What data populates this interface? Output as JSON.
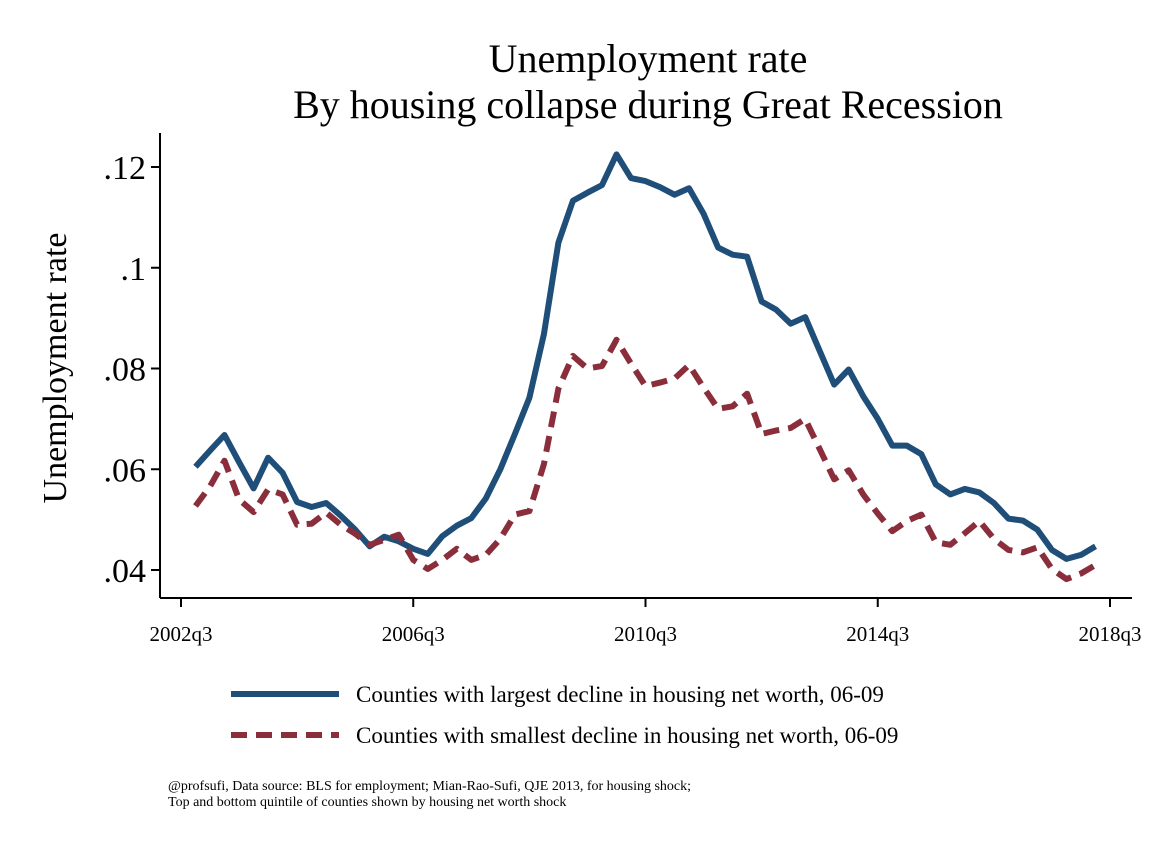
{
  "chart_data": {
    "type": "line",
    "title": "Unemployment rate",
    "subtitle": "By housing collapse during Great Recession",
    "xlabel": "",
    "ylabel": "Unemployment rate",
    "x_start": "2002q4",
    "x_end": "2018q1",
    "xlim": [
      "2002q3",
      "2018q3"
    ],
    "ylim": [
      0.035,
      0.126
    ],
    "x_ticks": [
      "2002q3",
      "2006q3",
      "2010q3",
      "2014q3",
      "2018q3"
    ],
    "y_ticks": [
      0.04,
      0.06,
      0.08,
      0.1,
      0.12
    ],
    "y_tick_labels": [
      ".04",
      ".06",
      ".08",
      ".1",
      ".12"
    ],
    "grid": false,
    "legend_position": "bottom",
    "series": [
      {
        "name": "Counties with largest decline in housing net worth, 06-09",
        "color": "#1f4e79",
        "style": "solid",
        "values": [
          0.0605,
          0.0637,
          0.0668,
          0.0614,
          0.0562,
          0.0623,
          0.0593,
          0.0535,
          0.0525,
          0.0533,
          0.0508,
          0.048,
          0.0447,
          0.0466,
          0.0457,
          0.0442,
          0.0432,
          0.0467,
          0.0488,
          0.0503,
          0.0542,
          0.06,
          0.067,
          0.0742,
          0.0868,
          0.105,
          0.1133,
          0.1149,
          0.1164,
          0.1225,
          0.1178,
          0.1172,
          0.116,
          0.1145,
          0.1158,
          0.1107,
          0.104,
          0.1026,
          0.1022,
          0.0933,
          0.0917,
          0.0889,
          0.0902,
          0.0835,
          0.0768,
          0.0798,
          0.0745,
          0.07,
          0.0647,
          0.0647,
          0.063,
          0.057,
          0.055,
          0.0561,
          0.0554,
          0.0533,
          0.0502,
          0.0498,
          0.048,
          0.044,
          0.0422,
          0.043,
          0.0447
        ]
      },
      {
        "name": "Counties with smallest decline in housing net worth, 06-09",
        "color": "#8b2e3b",
        "style": "dashed",
        "values": [
          0.0527,
          0.0566,
          0.0617,
          0.054,
          0.0515,
          0.056,
          0.055,
          0.049,
          0.0492,
          0.0514,
          0.049,
          0.0472,
          0.045,
          0.046,
          0.047,
          0.042,
          0.0402,
          0.042,
          0.0442,
          0.042,
          0.043,
          0.0462,
          0.051,
          0.0517,
          0.061,
          0.076,
          0.0825,
          0.08,
          0.0805,
          0.0857,
          0.081,
          0.0765,
          0.0772,
          0.078,
          0.0807,
          0.0762,
          0.072,
          0.0725,
          0.075,
          0.067,
          0.0677,
          0.0682,
          0.07,
          0.064,
          0.058,
          0.0598,
          0.055,
          0.0512,
          0.0477,
          0.0497,
          0.051,
          0.0455,
          0.045,
          0.0473,
          0.0497,
          0.0462,
          0.044,
          0.0435,
          0.0445,
          0.0402,
          0.0382,
          0.0393,
          0.041
        ]
      }
    ],
    "notes": [
      "@profsufi, Data source: BLS for employment; Mian-Rao-Sufi, QJE 2013, for housing shock;",
      "Top and bottom quintile of counties shown by housing net worth shock"
    ]
  }
}
